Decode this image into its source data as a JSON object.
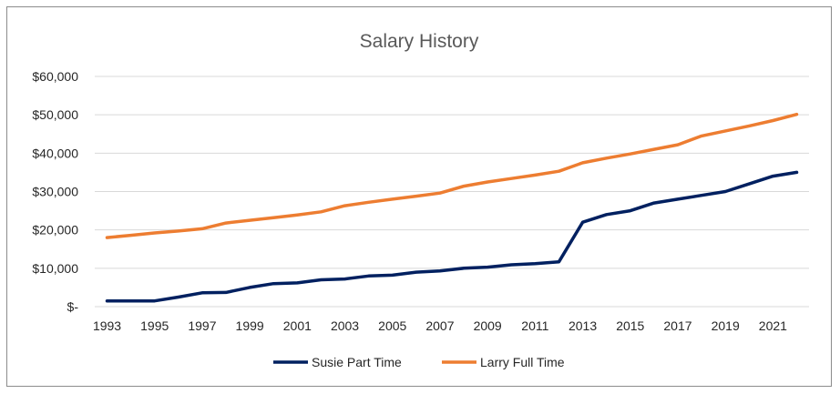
{
  "chart_data": {
    "type": "line",
    "title": "Salary History",
    "xlabel": "",
    "ylabel": "",
    "x": [
      1993,
      1994,
      1995,
      1996,
      1997,
      1998,
      1999,
      2000,
      2001,
      2002,
      2003,
      2004,
      2005,
      2006,
      2007,
      2008,
      2009,
      2010,
      2011,
      2012,
      2013,
      2014,
      2015,
      2016,
      2017,
      2018,
      2019,
      2020,
      2021,
      2022
    ],
    "xticks": [
      1993,
      1995,
      1997,
      1999,
      2001,
      2003,
      2005,
      2007,
      2009,
      2011,
      2013,
      2015,
      2017,
      2019,
      2021
    ],
    "xtick_labels": [
      "1993",
      "1995",
      "1997",
      "1999",
      "2001",
      "2003",
      "2005",
      "2007",
      "2009",
      "2011",
      "2013",
      "2015",
      "2017",
      "2019",
      "2021"
    ],
    "ylim": [
      0,
      60000
    ],
    "yticks": [
      0,
      10000,
      20000,
      30000,
      40000,
      50000,
      60000
    ],
    "ytick_labels": [
      "$-",
      "$10,000",
      "$20,000",
      "$30,000",
      "$40,000",
      "$50,000",
      "$60,000"
    ],
    "grid": true,
    "legend_position": "bottom",
    "series": [
      {
        "name": "Susie Part Time",
        "color": "#002060",
        "values": [
          1500,
          1500,
          1500,
          2500,
          3600,
          3700,
          5000,
          6000,
          6200,
          7000,
          7200,
          8000,
          8200,
          9000,
          9300,
          10000,
          10300,
          10900,
          11200,
          11700,
          22000,
          24000,
          25000,
          27000,
          28000,
          29000,
          30000,
          32000,
          34000,
          35000
        ]
      },
      {
        "name": "Larry Full Time",
        "color": "#ED7D31",
        "values": [
          18000,
          18600,
          19200,
          19700,
          20300,
          21800,
          22500,
          23200,
          23900,
          24700,
          26300,
          27200,
          28000,
          28800,
          29600,
          31400,
          32500,
          33400,
          34300,
          35300,
          37500,
          38700,
          39800,
          41000,
          42200,
          44500,
          45800,
          47100,
          48500,
          50100
        ]
      }
    ]
  }
}
